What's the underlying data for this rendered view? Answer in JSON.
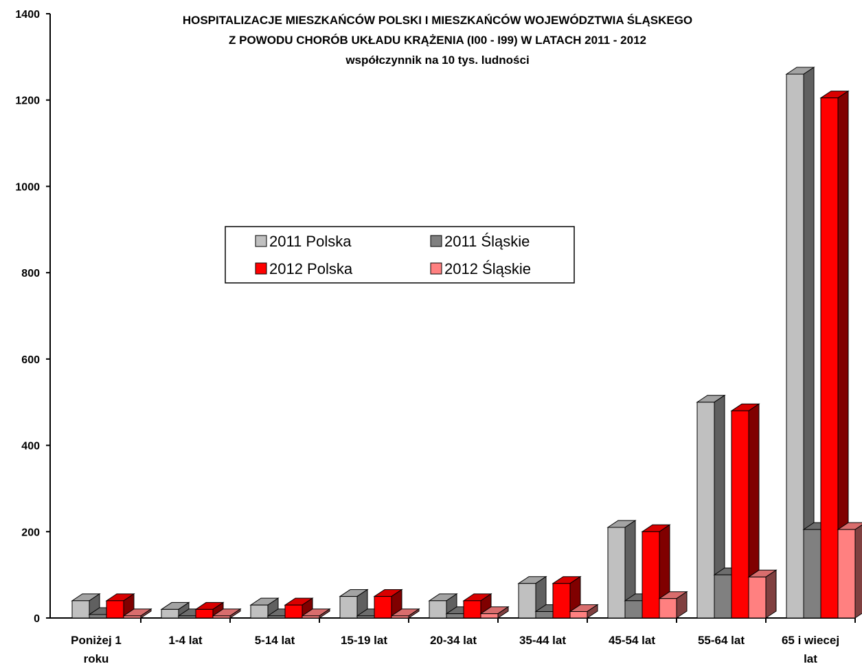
{
  "chart_data": {
    "type": "bar",
    "subtype": "3d-clustered-column",
    "title_lines": [
      "HOSPITALIZACJE MIESZKAŃCÓW POLSKI I MIESZKAŃCÓW WOJEWÓDZTWIA ŚLĄSKEGO",
      "Z POWODU CHORÓB UKŁADU KRĄŻENIA (I00 - I99) W LATACH 2011 - 2012",
      "współczynnik na 10 tys. ludności"
    ],
    "categories": [
      [
        "Poniżej 1",
        "roku"
      ],
      [
        "1-4 lat"
      ],
      [
        "5-14 lat"
      ],
      [
        "15-19 lat"
      ],
      [
        "20-34 lat"
      ],
      [
        "35-44 lat"
      ],
      [
        "45-54 lat"
      ],
      [
        "55-64 lat"
      ],
      [
        "65 i wiecej",
        "lat"
      ]
    ],
    "series": [
      {
        "name": "2011 Polska",
        "color": "#c0c0c0",
        "values": [
          40,
          20,
          30,
          50,
          40,
          80,
          210,
          500,
          1260
        ]
      },
      {
        "name": "2011 Śląskie",
        "color": "#808080",
        "values": [
          8,
          5,
          5,
          5,
          10,
          15,
          40,
          100,
          205
        ]
      },
      {
        "name": "2012 Polska",
        "color": "#ff0000",
        "values": [
          40,
          20,
          30,
          50,
          40,
          80,
          200,
          480,
          1205
        ]
      },
      {
        "name": "2012 Śląskie",
        "color": "#ff8080",
        "values": [
          5,
          5,
          5,
          5,
          10,
          15,
          45,
          95,
          205
        ]
      }
    ],
    "yticks": [
      0,
      200,
      400,
      600,
      800,
      1000,
      1200,
      1400
    ],
    "ylim": [
      0,
      1400
    ],
    "grid": false,
    "legend_position": "center-left"
  }
}
